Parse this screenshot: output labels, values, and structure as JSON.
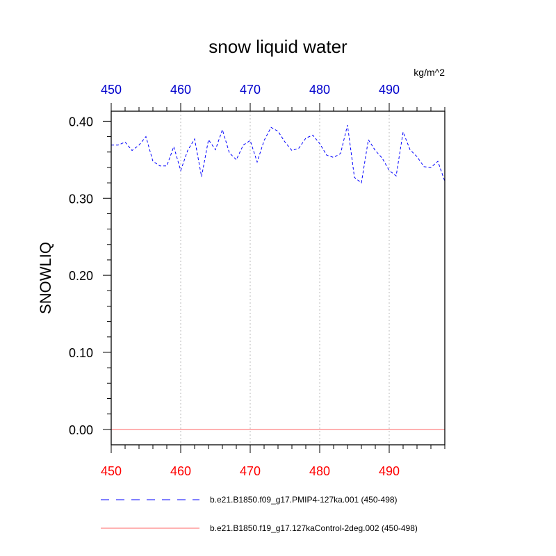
{
  "chart_data": {
    "type": "line",
    "title": "snow liquid water",
    "units": "kg/m^2",
    "ylabel": "SNOWLIQ",
    "xlabel": "",
    "xlim": [
      450,
      498
    ],
    "ylim": [
      -0.02,
      0.413
    ],
    "xticks": [
      "450",
      "460",
      "470",
      "480",
      "490"
    ],
    "top_xticks": [
      "450",
      "460",
      "470",
      "480",
      "490"
    ],
    "yticks": [
      "0.00",
      "0.10",
      "0.20",
      "0.30",
      "0.40"
    ],
    "grid": "vertical-dotted",
    "top_axis_color": "#0000cc",
    "bottom_axis_color": "#ff0000",
    "series": [
      {
        "name": "b.e21.B1850.f09_g17.PMIP4-127ka.001 (450-498)",
        "color": "#0000ff",
        "style": "dashed",
        "x": [
          450,
          451,
          452,
          453,
          454,
          455,
          456,
          457,
          458,
          459,
          460,
          461,
          462,
          463,
          464,
          465,
          466,
          467,
          468,
          469,
          470,
          471,
          472,
          473,
          474,
          475,
          476,
          477,
          478,
          479,
          480,
          481,
          482,
          483,
          484,
          485,
          486,
          487,
          488,
          489,
          490,
          491,
          492,
          493,
          494,
          495,
          496,
          497,
          498
        ],
        "values": [
          0.369,
          0.369,
          0.373,
          0.362,
          0.369,
          0.38,
          0.348,
          0.342,
          0.342,
          0.367,
          0.336,
          0.362,
          0.377,
          0.328,
          0.376,
          0.363,
          0.389,
          0.359,
          0.35,
          0.369,
          0.375,
          0.347,
          0.375,
          0.392,
          0.387,
          0.373,
          0.362,
          0.365,
          0.378,
          0.382,
          0.371,
          0.356,
          0.353,
          0.358,
          0.395,
          0.327,
          0.32,
          0.376,
          0.362,
          0.352,
          0.336,
          0.329,
          0.386,
          0.363,
          0.354,
          0.341,
          0.34,
          0.348,
          0.322
        ]
      },
      {
        "name": "b.e21.B1850.f19_g17.127kaControl-2deg.002 (450-498)",
        "color": "#ff6666",
        "style": "solid",
        "x": [
          450,
          498
        ],
        "values": [
          0.0,
          0.0
        ]
      }
    ]
  }
}
